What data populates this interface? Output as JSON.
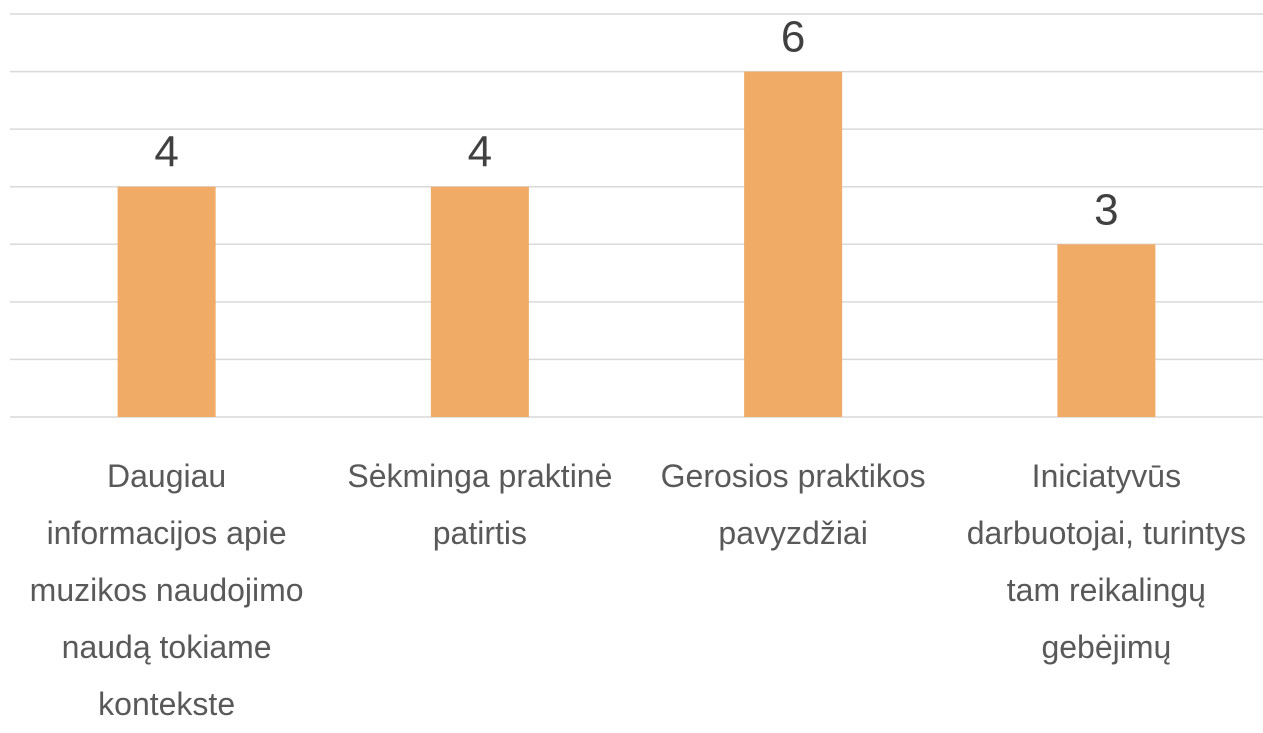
{
  "chart_data": {
    "type": "bar",
    "categories": [
      "Daugiau informacijos apie muzikos naudojimo naudą tokiame kontekste",
      "Sėkminga praktinė patirtis",
      "Gerosios praktikos pavyzdžiai",
      "Iniciatyvūs darbuotojai, turintys tam reikalingų gebėjimų"
    ],
    "values": [
      4,
      4,
      6,
      3
    ],
    "color": "#f0ab66",
    "ylim": [
      0,
      7
    ],
    "yticks": [
      0,
      1,
      2,
      3,
      4,
      5,
      6,
      7
    ],
    "grid": true
  }
}
